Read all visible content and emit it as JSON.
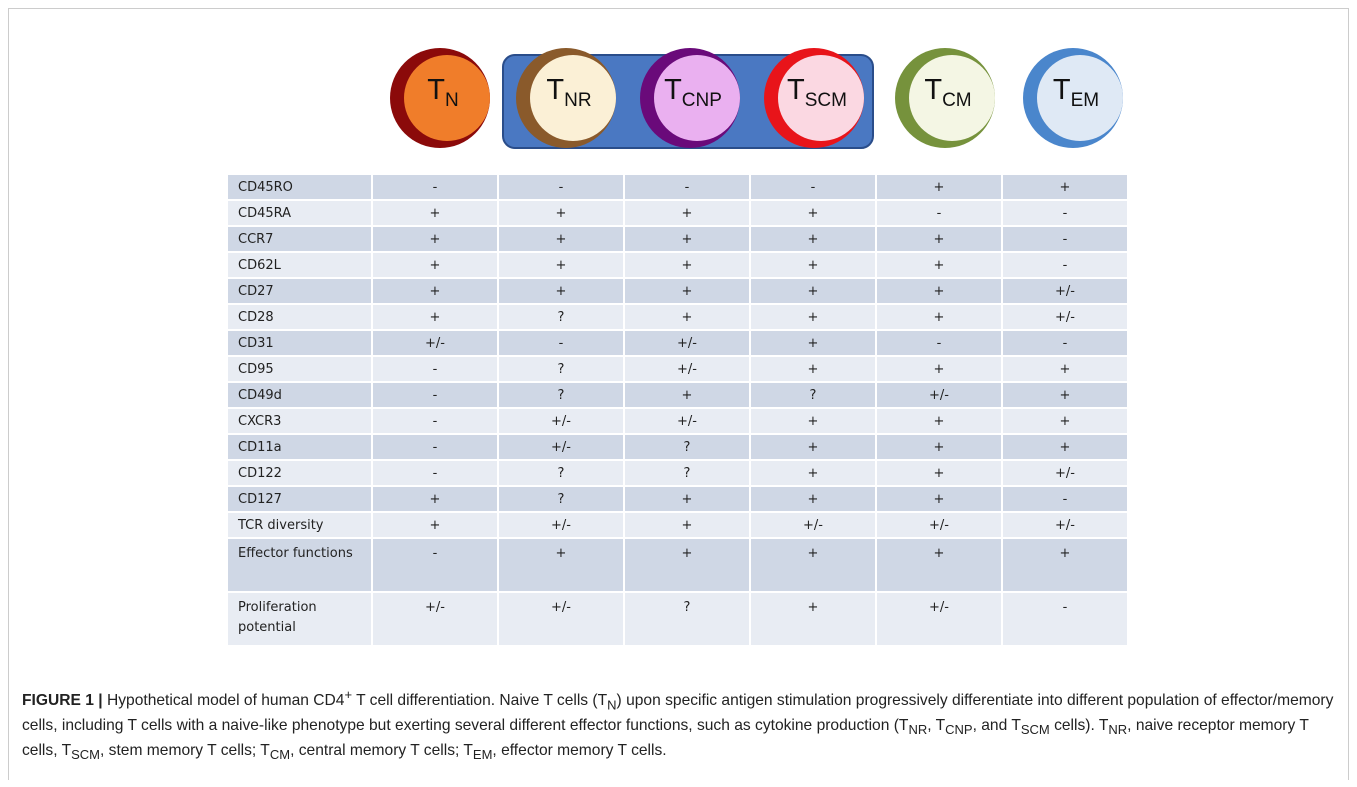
{
  "cells": [
    {
      "main": "T",
      "sub": "N"
    },
    {
      "main": "T",
      "sub": "NR"
    },
    {
      "main": "T",
      "sub": "CNP"
    },
    {
      "main": "T",
      "sub": "SCM"
    },
    {
      "main": "T",
      "sub": "CM"
    },
    {
      "main": "T",
      "sub": "EM"
    }
  ],
  "table": {
    "rows": [
      [
        "CD45RO",
        "-",
        "-",
        "-",
        "-",
        "+",
        "+"
      ],
      [
        "CD45RA",
        "+",
        "+",
        "+",
        "+",
        "-",
        "-"
      ],
      [
        "CCR7",
        "+",
        "+",
        "+",
        "+",
        "+",
        "-"
      ],
      [
        "CD62L",
        "+",
        "+",
        "+",
        "+",
        "+",
        "-"
      ],
      [
        "CD27",
        "+",
        "+",
        "+",
        "+",
        "+",
        "+/-"
      ],
      [
        "CD28",
        "+",
        "?",
        "+",
        "+",
        "+",
        "+/-"
      ],
      [
        "CD31",
        "+/-",
        "-",
        "+/-",
        "+",
        "-",
        "-"
      ],
      [
        "CD95",
        "-",
        "?",
        "+/-",
        "+",
        "+",
        "+"
      ],
      [
        "CD49d",
        "-",
        "?",
        "+",
        "?",
        "+/-",
        "+"
      ],
      [
        "CXCR3",
        "-",
        "+/-",
        "+/-",
        "+",
        "+",
        "+"
      ],
      [
        "CD11a",
        "-",
        "+/-",
        "?",
        "+",
        "+",
        "+"
      ],
      [
        "CD122",
        "-",
        "?",
        "?",
        "+",
        "+",
        "+/-"
      ],
      [
        "CD127",
        "+",
        "?",
        "+",
        "+",
        "+",
        "-"
      ],
      [
        "TCR diversity",
        "+",
        "+/-",
        "+",
        "+/-",
        "+/-",
        "+/-"
      ],
      [
        "Effector functions",
        "-",
        "+",
        "+",
        "+",
        "+",
        "+"
      ],
      [
        "Proliferation potential",
        "+/-",
        "+/-",
        "?",
        "+",
        "+/-",
        "-"
      ]
    ]
  },
  "caption": {
    "label": "FIGURE 1 |",
    "parts": [
      " Hypothetical model of human CD4",
      "+",
      " T cell differentiation. Naive T cells (T",
      "N",
      ") upon specific antigen stimulation progressively differentiate into different population of effector/memory cells, including T cells with a naive-like phenotype but exerting several different effector functions, such as cytokine production (T",
      "NR",
      ", T",
      "CNP",
      ", and T",
      "SCM",
      " cells). T",
      "NR",
      ", naive receptor memory T cells, T",
      "SCM",
      ", stem memory T cells; T",
      "CM",
      ", central memory T cells; T",
      "EM",
      ", effector memory T cells."
    ]
  }
}
